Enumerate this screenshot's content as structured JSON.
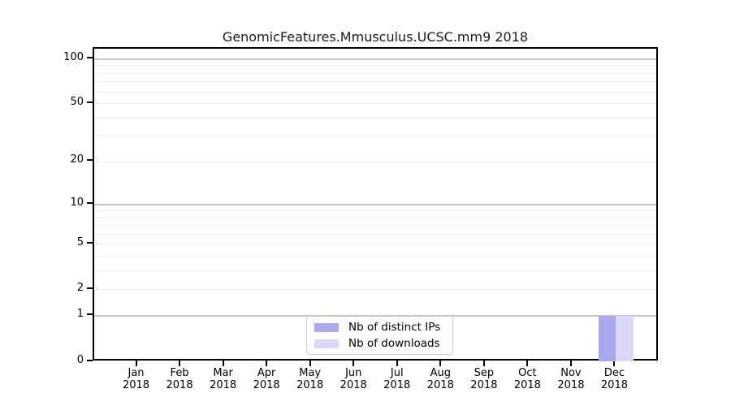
{
  "title": "GenomicFeatures.Mmusculus.UCSC.mm9 2018",
  "chart_data": {
    "type": "bar",
    "title": "GenomicFeatures.Mmusculus.UCSC.mm9 2018",
    "categories": [
      {
        "month": "Jan",
        "year": "2018"
      },
      {
        "month": "Feb",
        "year": "2018"
      },
      {
        "month": "Mar",
        "year": "2018"
      },
      {
        "month": "Apr",
        "year": "2018"
      },
      {
        "month": "May",
        "year": "2018"
      },
      {
        "month": "Jun",
        "year": "2018"
      },
      {
        "month": "Jul",
        "year": "2018"
      },
      {
        "month": "Aug",
        "year": "2018"
      },
      {
        "month": "Sep",
        "year": "2018"
      },
      {
        "month": "Oct",
        "year": "2018"
      },
      {
        "month": "Nov",
        "year": "2018"
      },
      {
        "month": "Dec",
        "year": "2018"
      }
    ],
    "series": [
      {
        "name": "Nb of distinct IPs",
        "color": "#a9a9f0",
        "values": [
          0,
          0,
          0,
          0,
          0,
          0,
          0,
          0,
          0,
          0,
          0,
          1
        ]
      },
      {
        "name": "Nb of downloads",
        "color": "#d9d9f7",
        "values": [
          0,
          0,
          0,
          0,
          0,
          0,
          0,
          0,
          0,
          0,
          0,
          1
        ]
      }
    ],
    "y_scale": "log10(1+v)",
    "ylim": [
      0,
      118
    ],
    "y_tick_values": [
      0,
      1,
      2,
      5,
      10,
      20,
      50,
      100
    ],
    "y_tick_labels": [
      "0",
      "1",
      "2",
      "5",
      "10",
      "20",
      "50",
      "100"
    ],
    "y_major_gridlines": [
      1,
      10,
      100
    ],
    "y_minor_gridlines": [
      2,
      3,
      4,
      5,
      6,
      7,
      8,
      9,
      20,
      30,
      40,
      50,
      60,
      70,
      80,
      90
    ],
    "grid": true,
    "legend_position": "bottom-center"
  },
  "legend": {
    "items": [
      {
        "label": "Nb of distinct IPs",
        "color": "#a9a9f0"
      },
      {
        "label": "Nb of downloads",
        "color": "#d9d9f7"
      }
    ]
  },
  "colors": {
    "bar_distinct_ips": "#a9a9f0",
    "bar_downloads": "#d9d9f7",
    "major_gridline": "#c6c6c6",
    "minor_gridline": "#ededed",
    "axis": "#000000",
    "legend_border": "#cccccc",
    "background": "#ffffff"
  }
}
